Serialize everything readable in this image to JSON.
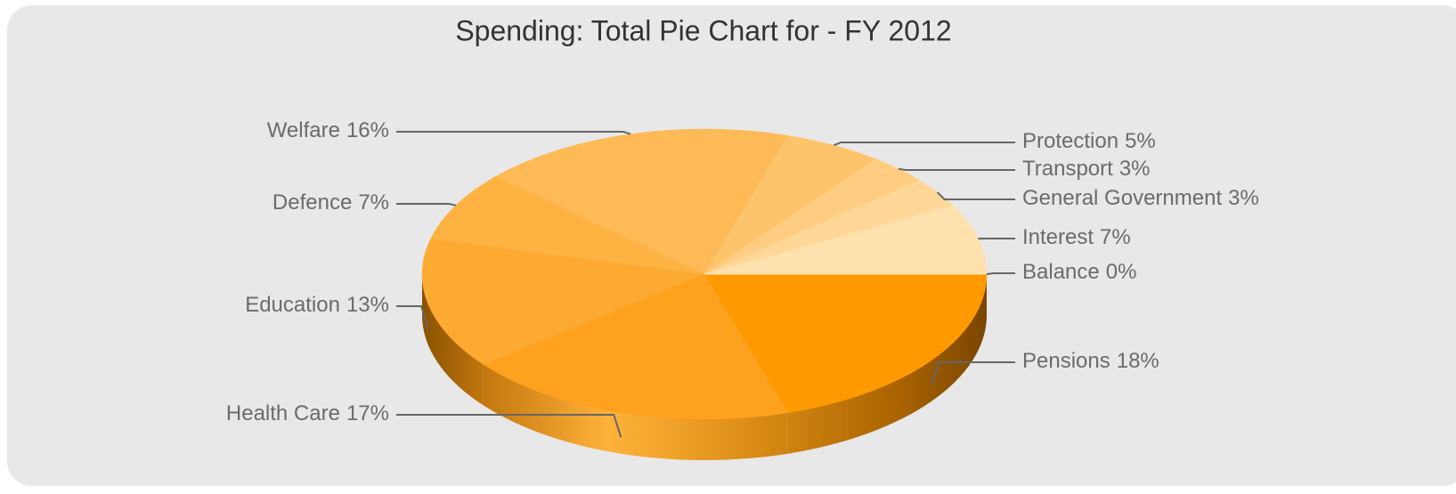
{
  "chart_data": {
    "type": "pie",
    "title": "Spending: Total Pie Chart for  - FY 2012",
    "categories": [
      "Pensions",
      "Health Care",
      "Education",
      "Defence",
      "Welfare",
      "Protection",
      "Transport",
      "General Government",
      "Interest",
      "Balance"
    ],
    "values": [
      18,
      17,
      13,
      7,
      16,
      5,
      3,
      3,
      7,
      0
    ],
    "value_labels": [
      "18%",
      "17%",
      "13%",
      "7%",
      "16%",
      "5%",
      "3%",
      "3%",
      "7%",
      "0%"
    ],
    "colors": [
      "#ff9900",
      "#fda11e",
      "#fdaa33",
      "#fdb242",
      "#fdba56",
      "#fec46c",
      "#fecd82",
      "#fed796",
      "#fee1ad",
      "#ffebc4"
    ]
  }
}
